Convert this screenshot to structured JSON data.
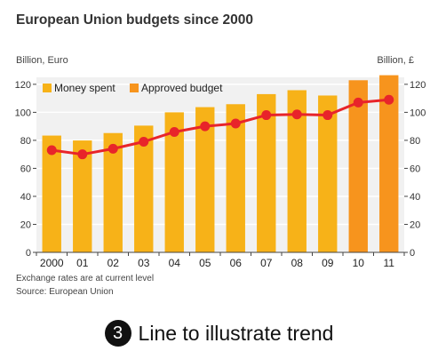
{
  "caption": {
    "number": "3",
    "text": "Line to illustrate trend"
  },
  "chart_data": {
    "type": "bar+line",
    "title": "European Union budgets since 2000",
    "left_axis_label": "Billion, Euro",
    "right_axis_label": "Billion, £",
    "categories": [
      "2000",
      "01",
      "02",
      "03",
      "04",
      "05",
      "06",
      "07",
      "08",
      "09",
      "10",
      "11"
    ],
    "bar_series": [
      {
        "name": "Money spent",
        "color": "#f7b218",
        "values": [
          83.4,
          79.9,
          85.2,
          90.5,
          100.0,
          103.7,
          105.8,
          113.0,
          115.8,
          112.0,
          null,
          null
        ]
      },
      {
        "name": "Approved budget",
        "color": "#f7941d",
        "values": [
          null,
          null,
          null,
          null,
          null,
          null,
          null,
          null,
          null,
          null,
          122.9,
          126.5
        ]
      }
    ],
    "line_series": {
      "color": "#e8242a",
      "values": [
        73,
        70,
        74,
        79,
        86,
        90,
        92,
        98,
        98.5,
        98,
        107,
        109
      ]
    },
    "left_ylim": [
      0,
      125
    ],
    "left_ticks": [
      0,
      20,
      40,
      60,
      80,
      100,
      120
    ],
    "right_ylim": [
      0,
      125
    ],
    "right_ticks": [
      0,
      20,
      40,
      60,
      80,
      100,
      120
    ],
    "grid": "horizontal",
    "legend_position": "top-left",
    "notes": [
      "Exchange rates are at current level",
      "Source: European Union"
    ]
  }
}
